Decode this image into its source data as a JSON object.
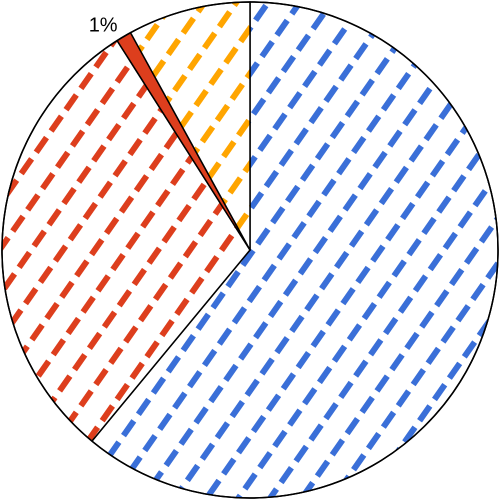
{
  "chart_data": {
    "type": "pie",
    "start_angle_deg": 0,
    "direction": "clockwise",
    "slices": [
      {
        "label": "",
        "value": 61,
        "color": "#3a6fd8",
        "pattern": "dashed-diagonal-hatch"
      },
      {
        "label": "",
        "value": 30,
        "color": "#dd3e1d",
        "pattern": "dashed-diagonal-hatch"
      },
      {
        "label": "1%",
        "value": 1,
        "color": "#dd3e1d",
        "pattern": "solid"
      },
      {
        "label": "",
        "value": 8,
        "color": "#ffa500",
        "pattern": "dashed-diagonal-hatch"
      }
    ],
    "legend": "none",
    "title": ""
  }
}
